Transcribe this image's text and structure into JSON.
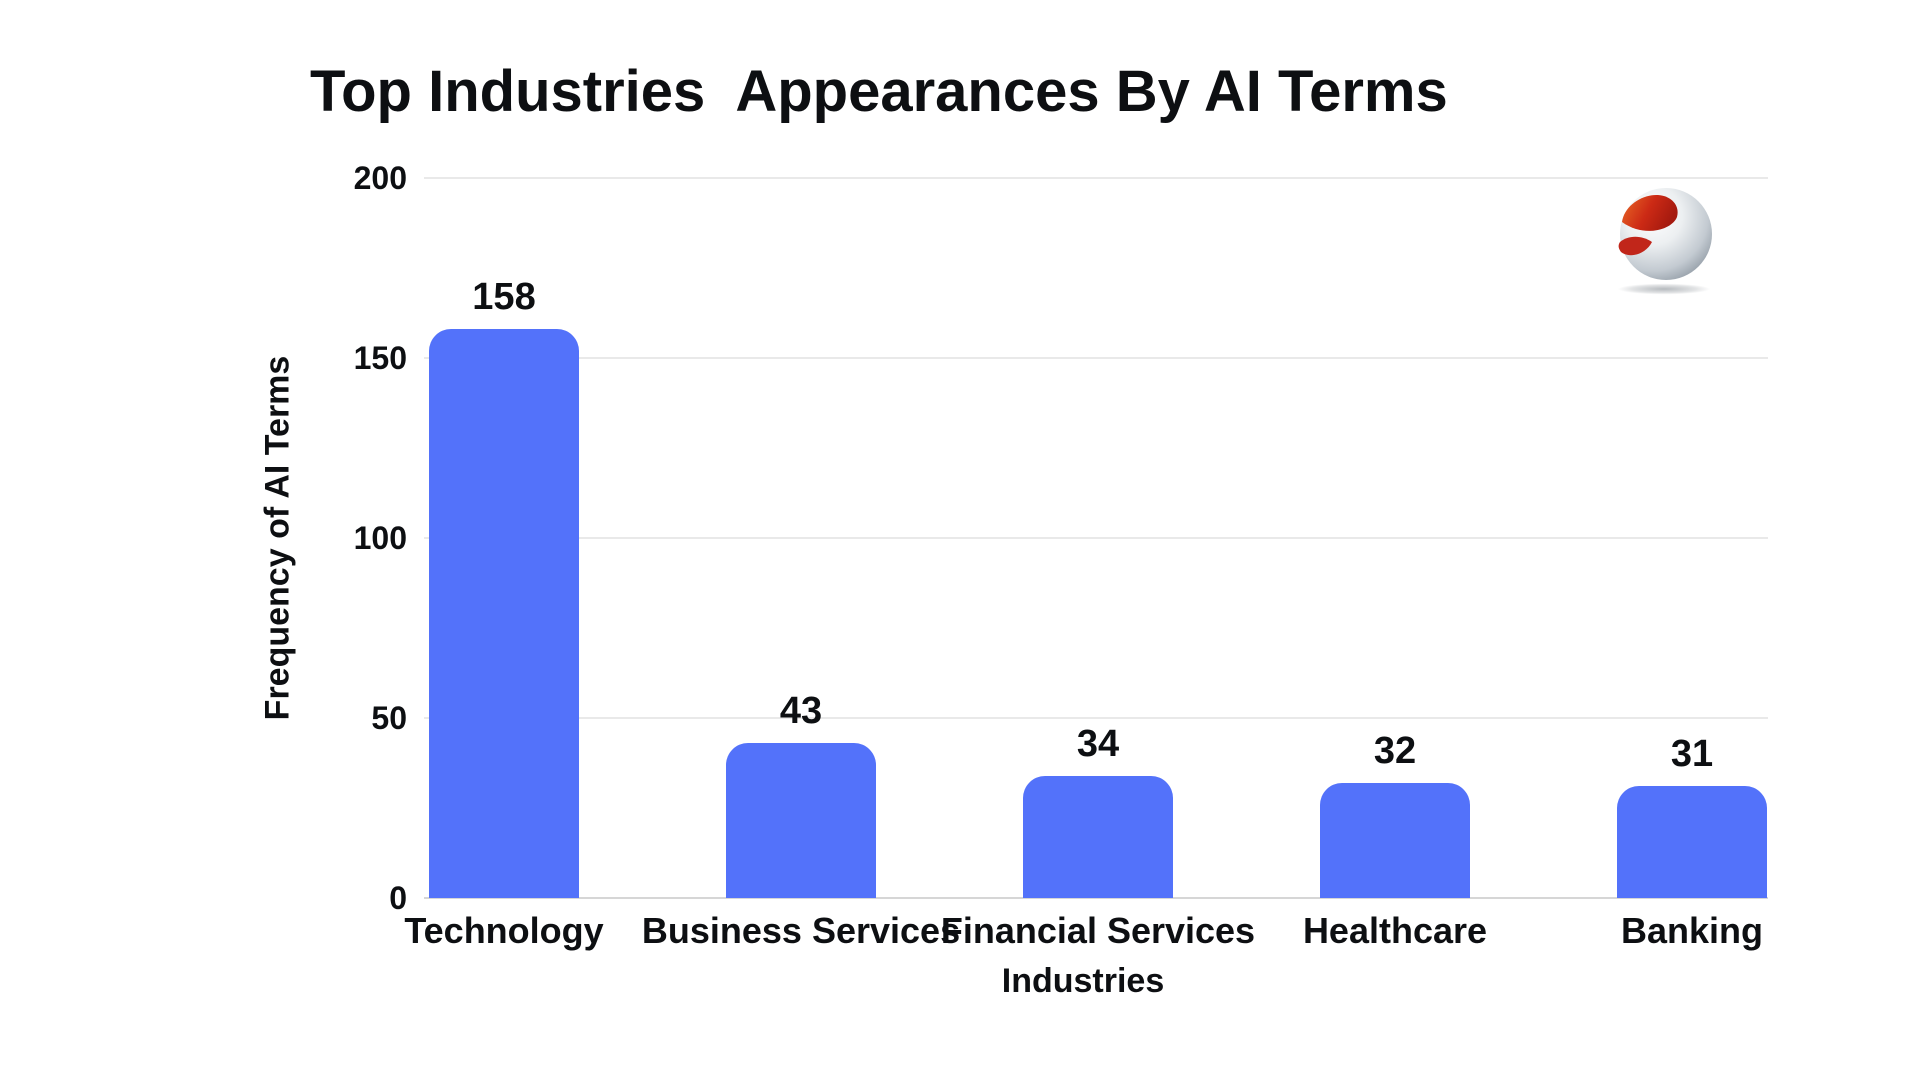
{
  "title": "Top Industries  Appearances By AI Terms",
  "y_axis_title": "Frequency of AI Terms",
  "x_axis_title": "Industries",
  "logo": {
    "name": "silver-sphere-red-swoosh-logo"
  },
  "theme": {
    "bar_color": "#5372fa",
    "gridline_color": "#e9e9e9",
    "axis_line_color": "#d6d6d6",
    "text_color": "#0d0f12",
    "background_color": "#ffffff",
    "logo_red": "#c7281a",
    "logo_orange": "#e96324",
    "logo_silver": "#aab3bc"
  },
  "chart_data": {
    "type": "bar",
    "title": "Top Industries  Appearances By AI Terms",
    "categories": [
      "Technology",
      "Business Services",
      "Financial Services",
      "Healthcare",
      "Banking"
    ],
    "values": [
      158,
      43,
      34,
      32,
      31
    ],
    "xlabel": "Industries",
    "ylabel": "Frequency of AI Terms",
    "ylim": [
      0,
      200
    ],
    "yticks": [
      0,
      50,
      100,
      150,
      200
    ],
    "grid": true,
    "legend": false,
    "bar_labels_shown": true
  }
}
